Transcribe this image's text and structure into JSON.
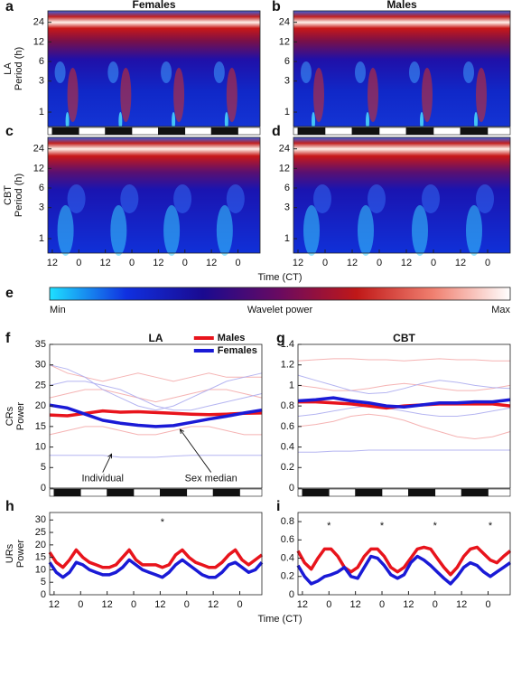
{
  "chart_data": [
    {
      "type": "heatmap",
      "panel": "a",
      "title": "Females",
      "ylabel": [
        "LA",
        "Period (h)"
      ],
      "ylim": [
        0.6,
        36
      ],
      "yticks": [
        1,
        3,
        6,
        12,
        24
      ],
      "log": true,
      "xlim": [
        -2,
        94
      ],
      "ld_bar": true,
      "variable": "LA"
    },
    {
      "type": "heatmap",
      "panel": "b",
      "title": "Males",
      "ylim": [
        0.6,
        36
      ],
      "yticks": [
        1,
        3,
        6,
        12,
        24
      ],
      "log": true,
      "xlim": [
        -2,
        94
      ],
      "ld_bar": true,
      "variable": "LA"
    },
    {
      "type": "heatmap",
      "panel": "c",
      "ylabel": [
        "CBT",
        "Period (h)"
      ],
      "ylim": [
        0.6,
        36
      ],
      "yticks": [
        1,
        3,
        6,
        12,
        24
      ],
      "log": true,
      "xlim": [
        -2,
        94
      ],
      "xlabel": "Time (CT)",
      "xticks": [
        {
          "value": 0,
          "label": "12"
        },
        {
          "value": 12,
          "label": "0"
        },
        {
          "value": 24,
          "label": "12"
        },
        {
          "value": 36,
          "label": "0"
        },
        {
          "value": 48,
          "label": "12"
        },
        {
          "value": 60,
          "label": "0"
        },
        {
          "value": 72,
          "label": "12"
        },
        {
          "value": 84,
          "label": "0"
        }
      ],
      "variable": "CBT"
    },
    {
      "type": "heatmap",
      "panel": "d",
      "ylim": [
        0.6,
        36
      ],
      "yticks": [
        1,
        3,
        6,
        12,
        24
      ],
      "log": true,
      "xlim": [
        -2,
        94
      ],
      "xticks": [
        {
          "value": 0,
          "label": "12"
        },
        {
          "value": 12,
          "label": "0"
        },
        {
          "value": 24,
          "label": "12"
        },
        {
          "value": 36,
          "label": "0"
        },
        {
          "value": 48,
          "label": "12"
        },
        {
          "value": 60,
          "label": "0"
        },
        {
          "value": 72,
          "label": "12"
        },
        {
          "value": 84,
          "label": "0"
        }
      ],
      "variable": "CBT"
    },
    {
      "type": "colorbar",
      "panel": "e",
      "min_label": "Min",
      "label": "Wavelet power",
      "max_label": "Max",
      "colors": [
        "#1ee0ff",
        "#1030e0",
        "#1a0a90",
        "#6a0a60",
        "#c01818",
        "#f08070",
        "#ffffff"
      ]
    },
    {
      "type": "line",
      "panel": "f",
      "title": "LA",
      "ylabel": [
        "CRs",
        "Power"
      ],
      "ylim": [
        0,
        35
      ],
      "yticks": [
        0,
        5,
        10,
        15,
        20,
        25,
        30,
        35
      ],
      "xlim": [
        -2,
        94
      ],
      "ld_bar": true,
      "legend": "top-right",
      "x": [
        -2,
        6,
        14,
        22,
        30,
        38,
        46,
        54,
        62,
        70,
        78,
        86,
        94
      ],
      "individual_lines": [
        {
          "color": "#f3a6a6",
          "values": [
            30,
            28,
            27,
            26,
            27,
            28,
            27,
            26,
            27,
            28,
            27,
            27,
            27
          ]
        },
        {
          "color": "#f3a6a6",
          "values": [
            13,
            14,
            15,
            15,
            14,
            13,
            13,
            14,
            15,
            15,
            14,
            13,
            13
          ]
        },
        {
          "color": "#f3a6a6",
          "values": [
            22,
            23,
            24,
            24,
            23,
            22,
            21,
            22,
            23,
            24,
            24,
            23,
            22
          ]
        },
        {
          "color": "#a8a8ee",
          "values": [
            30,
            29,
            27,
            24,
            22,
            20,
            19,
            20,
            22,
            24,
            26,
            27,
            28
          ]
        },
        {
          "color": "#a8a8ee",
          "values": [
            8,
            8,
            8,
            8,
            7.5,
            7.5,
            7.5,
            7.8,
            8,
            8,
            8,
            8,
            8
          ]
        },
        {
          "color": "#a8a8ee",
          "values": [
            25,
            26,
            26,
            25,
            24,
            22,
            20,
            19,
            19,
            20,
            21,
            22,
            23
          ]
        }
      ],
      "series": [
        {
          "name": "Males",
          "color": "#e8141c",
          "values": [
            17.8,
            17.6,
            18.2,
            18.8,
            18.5,
            18.6,
            18.4,
            18.2,
            18,
            17.9,
            18,
            18.2,
            18.3
          ]
        },
        {
          "name": "Females",
          "color": "#1a1ad6",
          "values": [
            20.2,
            19.5,
            18,
            16.5,
            15.8,
            15.3,
            15,
            15.2,
            16,
            16.8,
            17.5,
            18.3,
            19
          ]
        }
      ],
      "annotations": [
        {
          "text": "Individual",
          "x": 22,
          "y": 2.3,
          "target_x": 26,
          "target_y": 8.3
        },
        {
          "text": "Sex median",
          "x": 71,
          "y": 2.3,
          "target_x": 57,
          "target_y": 14.3
        }
      ]
    },
    {
      "type": "line",
      "panel": "g",
      "title": "CBT",
      "ylim": [
        0,
        1.4
      ],
      "yticks": [
        0,
        0.2,
        0.4,
        0.6,
        0.8,
        1,
        1.2,
        1.4
      ],
      "xlim": [
        -2,
        94
      ],
      "ld_bar": true,
      "x": [
        -2,
        6,
        14,
        22,
        30,
        38,
        46,
        54,
        62,
        70,
        78,
        86,
        94
      ],
      "individual_lines": [
        {
          "color": "#f3a6a6",
          "values": [
            1.24,
            1.25,
            1.26,
            1.26,
            1.25,
            1.25,
            1.24,
            1.25,
            1.26,
            1.25,
            1.25,
            1.24,
            1.24
          ]
        },
        {
          "color": "#f3a6a6",
          "values": [
            0.6,
            0.62,
            0.65,
            0.7,
            0.72,
            0.7,
            0.66,
            0.6,
            0.55,
            0.5,
            0.48,
            0.5,
            0.55
          ]
        },
        {
          "color": "#f3a6a6",
          "values": [
            1,
            0.98,
            0.95,
            0.95,
            0.97,
            1,
            1.02,
            1,
            0.97,
            0.95,
            0.95,
            0.97,
            1
          ]
        },
        {
          "color": "#a8a8ee",
          "values": [
            0.35,
            0.35,
            0.36,
            0.36,
            0.37,
            0.37,
            0.37,
            0.37,
            0.37,
            0.37,
            0.37,
            0.37,
            0.37
          ]
        },
        {
          "color": "#a8a8ee",
          "values": [
            1.1,
            1.05,
            1,
            0.95,
            0.92,
            0.93,
            0.97,
            1.02,
            1.05,
            1.03,
            1,
            0.98,
            0.97
          ]
        },
        {
          "color": "#a8a8ee",
          "values": [
            0.7,
            0.72,
            0.75,
            0.78,
            0.8,
            0.78,
            0.75,
            0.72,
            0.7,
            0.7,
            0.72,
            0.75,
            0.78
          ]
        }
      ],
      "series": [
        {
          "color": "#e8141c",
          "values": [
            0.84,
            0.84,
            0.83,
            0.82,
            0.8,
            0.78,
            0.8,
            0.81,
            0.82,
            0.82,
            0.82,
            0.82,
            0.8
          ]
        },
        {
          "color": "#1a1ad6",
          "values": [
            0.85,
            0.86,
            0.88,
            0.85,
            0.83,
            0.8,
            0.79,
            0.81,
            0.83,
            0.83,
            0.84,
            0.84,
            0.86
          ]
        }
      ]
    },
    {
      "type": "line",
      "panel": "h",
      "ylabel": [
        "URs",
        "Power"
      ],
      "ylim": [
        0,
        33
      ],
      "yticks": [
        0,
        5,
        10,
        15,
        20,
        25,
        30
      ],
      "xlim": [
        -2,
        94
      ],
      "xlabel": "Time (CT)",
      "xticks": [
        {
          "value": 0,
          "label": "12"
        },
        {
          "value": 12,
          "label": "0"
        },
        {
          "value": 24,
          "label": "12"
        },
        {
          "value": 36,
          "label": "0"
        },
        {
          "value": 48,
          "label": "12"
        },
        {
          "value": 60,
          "label": "0"
        },
        {
          "value": 72,
          "label": "12"
        },
        {
          "value": 84,
          "label": "0"
        }
      ],
      "x": [
        -2,
        1,
        4,
        7,
        10,
        13,
        16,
        19,
        22,
        25,
        28,
        31,
        34,
        37,
        40,
        43,
        46,
        49,
        52,
        55,
        58,
        61,
        64,
        67,
        70,
        73,
        76,
        79,
        82,
        85,
        88,
        91,
        94
      ],
      "series": [
        {
          "color": "#e8141c",
          "values": [
            17,
            13,
            11,
            14,
            18,
            15,
            13,
            12,
            11,
            11,
            12,
            15,
            18,
            14,
            12,
            12,
            12,
            11,
            12,
            16,
            18,
            15,
            13,
            12,
            11,
            11,
            13,
            16,
            18,
            14,
            12,
            14,
            16
          ]
        },
        {
          "color": "#1a1ad6",
          "values": [
            13,
            9,
            7,
            9,
            13,
            12,
            10,
            9,
            8,
            8,
            9,
            11,
            14,
            12,
            10,
            9,
            8,
            7,
            9,
            12,
            14,
            12,
            10,
            8,
            7,
            7,
            9,
            12,
            13,
            11,
            9,
            10,
            13
          ]
        }
      ],
      "annotations": [
        {
          "text": "*",
          "x": 49,
          "y": 30
        }
      ]
    },
    {
      "type": "line",
      "panel": "i",
      "ylim": [
        0,
        0.9
      ],
      "yticks": [
        0,
        0.2,
        0.4,
        0.6,
        0.8
      ],
      "xlim": [
        -2,
        94
      ],
      "xticks": [
        {
          "value": 0,
          "label": "12"
        },
        {
          "value": 12,
          "label": "0"
        },
        {
          "value": 24,
          "label": "12"
        },
        {
          "value": 36,
          "label": "0"
        },
        {
          "value": 48,
          "label": "12"
        },
        {
          "value": 60,
          "label": "0"
        },
        {
          "value": 72,
          "label": "12"
        },
        {
          "value": 84,
          "label": "0"
        }
      ],
      "x": [
        -2,
        1,
        4,
        7,
        10,
        13,
        16,
        19,
        22,
        25,
        28,
        31,
        34,
        37,
        40,
        43,
        46,
        49,
        52,
        55,
        58,
        61,
        64,
        67,
        70,
        73,
        76,
        79,
        82,
        85,
        88,
        91,
        94
      ],
      "series": [
        {
          "color": "#e8141c",
          "values": [
            0.48,
            0.35,
            0.28,
            0.4,
            0.5,
            0.5,
            0.42,
            0.3,
            0.25,
            0.3,
            0.42,
            0.5,
            0.5,
            0.42,
            0.3,
            0.25,
            0.3,
            0.4,
            0.5,
            0.52,
            0.5,
            0.4,
            0.3,
            0.22,
            0.3,
            0.42,
            0.5,
            0.52,
            0.45,
            0.38,
            0.35,
            0.42,
            0.48
          ]
        },
        {
          "color": "#1a1ad6",
          "values": [
            0.32,
            0.2,
            0.12,
            0.15,
            0.2,
            0.22,
            0.25,
            0.3,
            0.2,
            0.18,
            0.3,
            0.42,
            0.4,
            0.32,
            0.22,
            0.18,
            0.22,
            0.35,
            0.42,
            0.38,
            0.32,
            0.25,
            0.18,
            0.12,
            0.2,
            0.3,
            0.35,
            0.32,
            0.25,
            0.2,
            0.25,
            0.3,
            0.35
          ]
        }
      ],
      "annotations": [
        {
          "text": "*",
          "x": 12,
          "y": 0.78
        },
        {
          "text": "*",
          "x": 36,
          "y": 0.78
        },
        {
          "text": "*",
          "x": 60,
          "y": 0.78
        },
        {
          "text": "*",
          "x": 85,
          "y": 0.78
        }
      ]
    }
  ]
}
